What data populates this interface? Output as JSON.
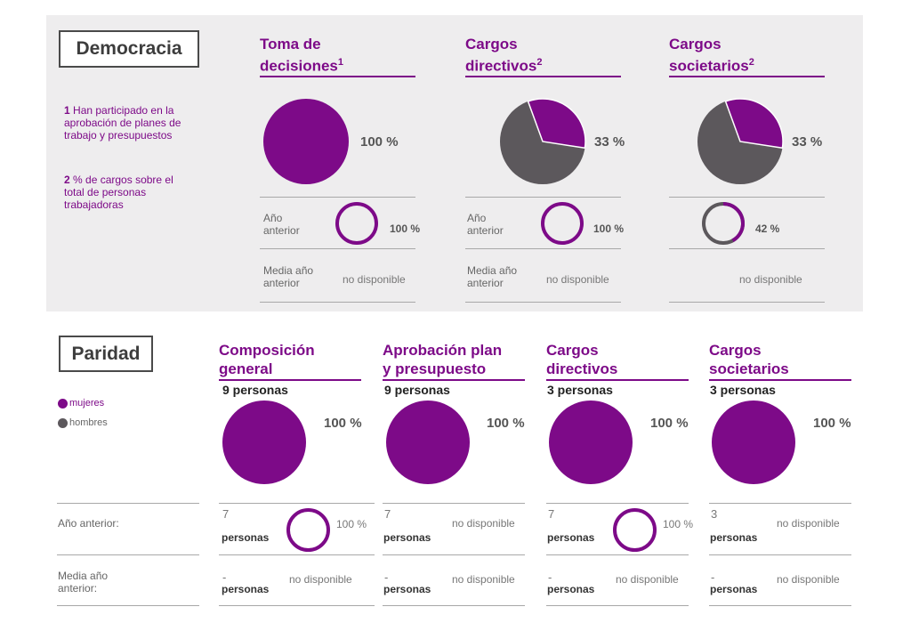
{
  "colors": {
    "mujeres": "#7d0a88",
    "hombres": "#5c585c",
    "panel": "#eeedee"
  },
  "democracia": {
    "title": "Democracia",
    "notes": [
      {
        "num": "1",
        "text": "Han participado en la aprobación de planes de trabajo y presupuestos"
      },
      {
        "num": "2",
        "text": "% de cargos sobre el total de personas trabajadoras"
      }
    ],
    "row_labels": {
      "prev_year": "Año anterior",
      "prev_avg": "Media año anterior"
    }
  },
  "paridad": {
    "title": "Paridad",
    "legend": {
      "mujeres": "mujeres",
      "hombres": "hombres"
    },
    "row_labels": {
      "prev_year": "Año anterior:",
      "prev_avg": "Media año anterior:"
    }
  },
  "chart_data": [
    {
      "type": "pie",
      "group": "Democracia",
      "title_line1": "Toma de",
      "title_line2": "decisiones",
      "sup": "1",
      "value": 100,
      "label": "100 %",
      "prev_value": 100,
      "prev_label": "100 %",
      "avg_label": "no disponible"
    },
    {
      "type": "pie",
      "group": "Democracia",
      "title_line1": "Cargos",
      "title_line2": "directivos",
      "sup": "2",
      "value": 33,
      "label": "33 %",
      "prev_value": 100,
      "prev_label": "100 %",
      "avg_label": "no disponible"
    },
    {
      "type": "pie",
      "group": "Democracia",
      "title_line1": "Cargos",
      "title_line2": "societarios",
      "sup": "2",
      "value": 33,
      "label": "33 %",
      "prev_value": 42,
      "prev_label": "42 %",
      "avg_label": "no disponible"
    },
    {
      "type": "pie",
      "group": "Paridad",
      "title_line1": "Composición",
      "title_line2": "general",
      "persons": "9 personas",
      "value": 100,
      "label": "100 %",
      "prev_num": "7",
      "prev_persons": "personas",
      "prev_value": 100,
      "prev_label": "100 %",
      "avg_num": "-",
      "avg_persons": "personas",
      "avg_label": "no disponible"
    },
    {
      "type": "pie",
      "group": "Paridad",
      "title_line1": "Aprobación plan",
      "title_line2": "y presupuesto",
      "persons": "9 personas",
      "value": 100,
      "label": "100 %",
      "prev_num": "7",
      "prev_persons": "personas",
      "prev_value": null,
      "prev_label": "no disponible",
      "avg_num": "-",
      "avg_persons": "personas",
      "avg_label": "no disponible"
    },
    {
      "type": "pie",
      "group": "Paridad",
      "title_line1": "Cargos",
      "title_line2": "directivos",
      "persons": "3 personas",
      "value": 100,
      "label": "100 %",
      "prev_num": "7",
      "prev_persons": "personas",
      "prev_value": 100,
      "prev_label": "100 %",
      "avg_num": "-",
      "avg_persons": "personas",
      "avg_label": "no disponible"
    },
    {
      "type": "pie",
      "group": "Paridad",
      "title_line1": "Cargos",
      "title_line2": "societarios",
      "persons": "3 personas",
      "value": 100,
      "label": "100 %",
      "prev_num": "3",
      "prev_persons": "personas",
      "prev_value": null,
      "prev_label": "no disponible",
      "avg_num": "-",
      "avg_persons": "personas",
      "avg_label": "no disponible"
    }
  ]
}
